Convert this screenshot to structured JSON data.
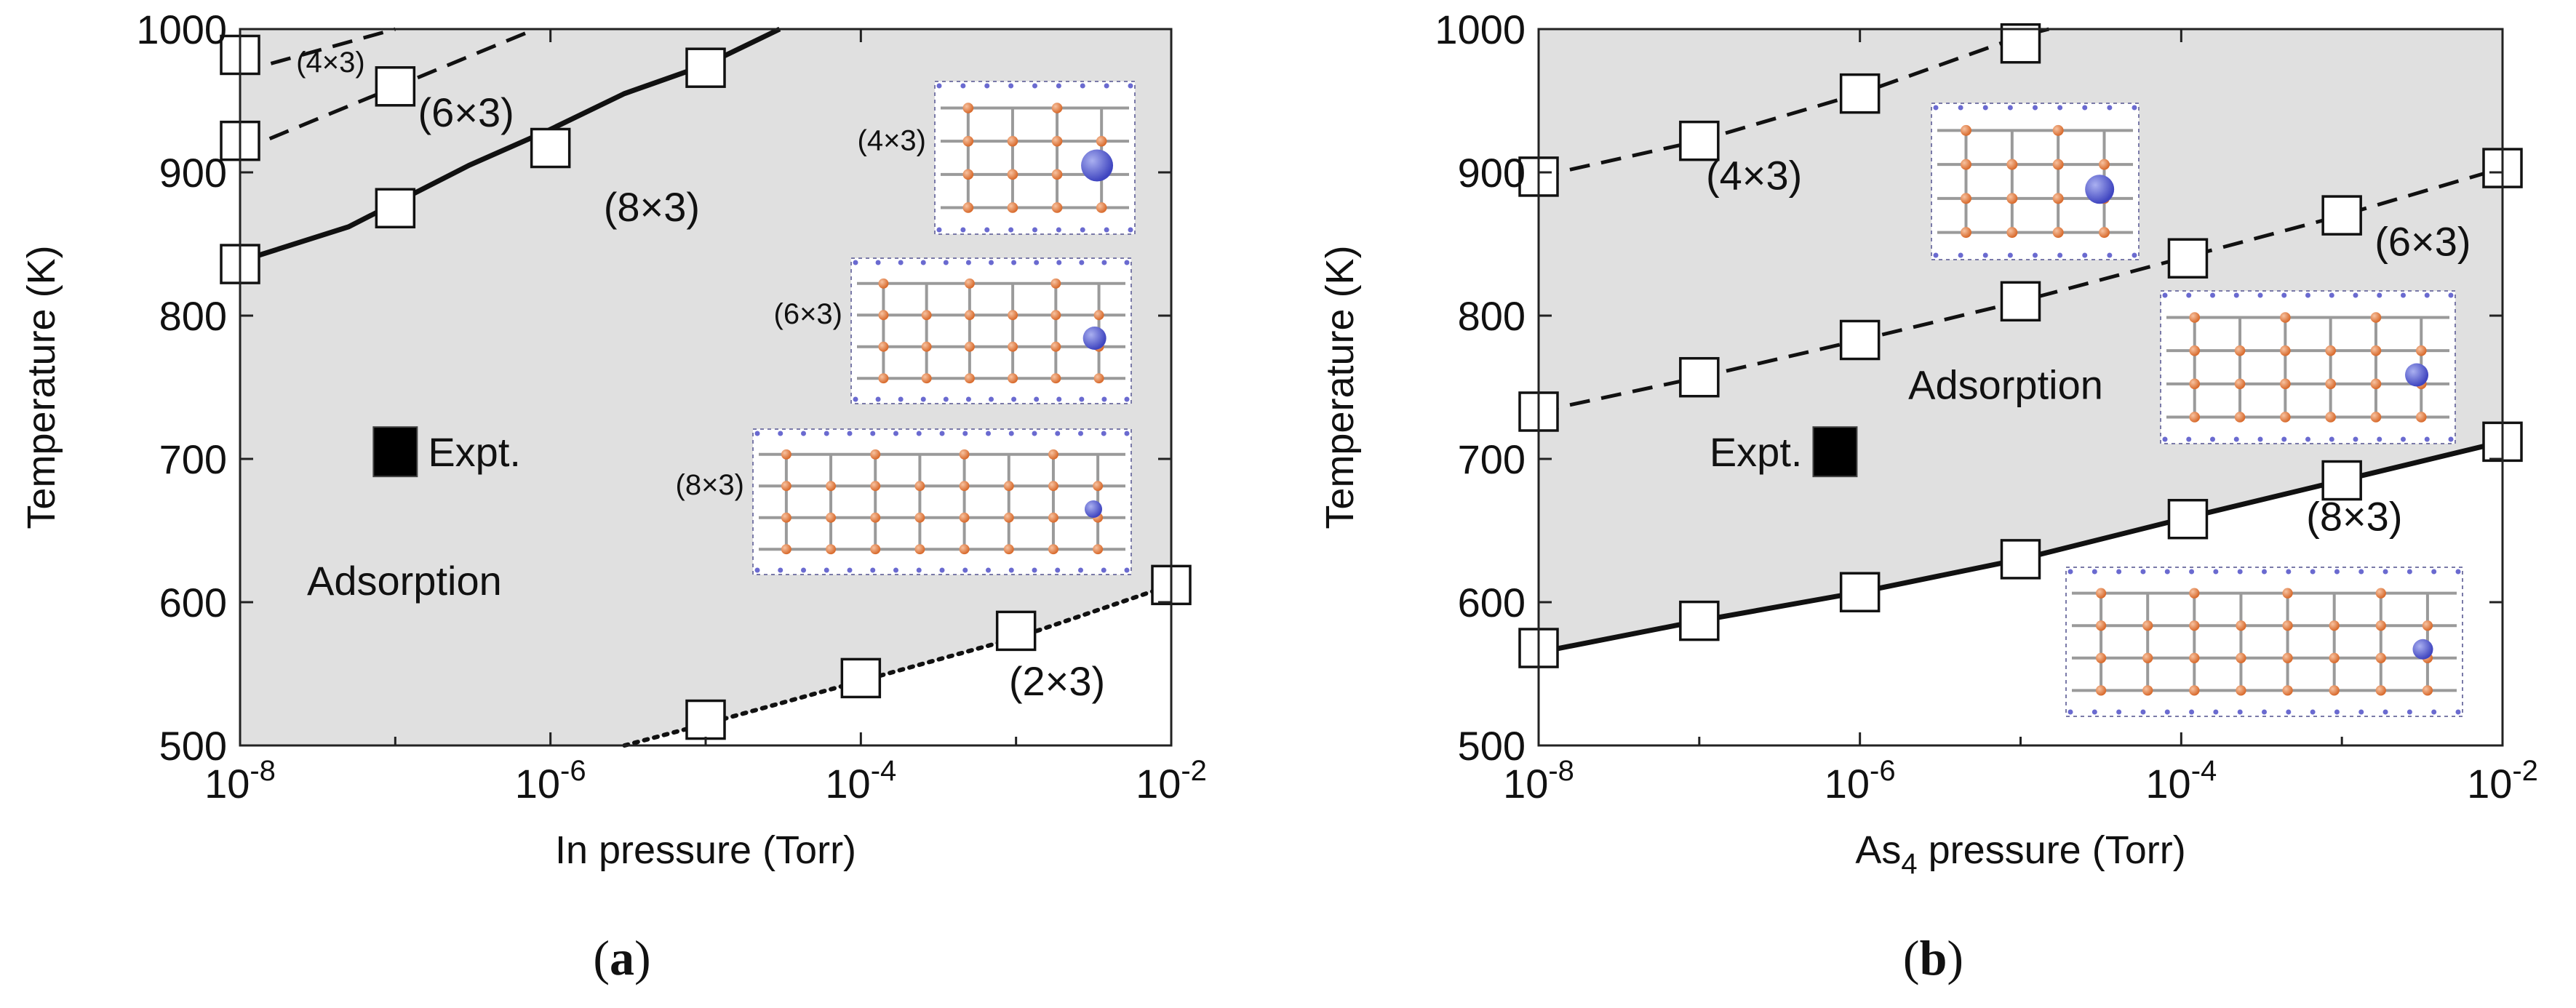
{
  "chart_data": [
    {
      "type": "scatter",
      "panel_label": "a",
      "xlabel": "In pressure (Torr)",
      "ylabel": "Temperature (K)",
      "xscale": "log",
      "xlim": [
        1e-08,
        0.01
      ],
      "ylim": [
        500,
        1000
      ],
      "x_ticks": [
        {
          "base": "10",
          "exp": "-8",
          "value": 1e-08
        },
        {
          "base": "10",
          "exp": "-6",
          "value": 1e-06
        },
        {
          "base": "10",
          "exp": "-4",
          "value": 0.0001
        },
        {
          "base": "10",
          "exp": "-2",
          "value": 0.01
        }
      ],
      "y_ticks": [
        "500",
        "600",
        "700",
        "800",
        "900",
        "1000"
      ],
      "y_tick_values": [
        500,
        600,
        700,
        800,
        900,
        1000
      ],
      "shaded_region": "Adsorption",
      "series": [
        {
          "name": "(4×3)",
          "style": "dashed",
          "line": [
            [
              1e-08,
              970
            ],
            [
              1e-07,
              1000
            ]
          ],
          "markers": [
            [
              1e-08,
              982
            ],
            [
              1e-07,
              960
            ]
          ]
        },
        {
          "name": "(6×3)",
          "style": "dashed",
          "line": [
            [
              1e-08,
              915
            ],
            [
              8e-07,
              1000
            ]
          ],
          "markers": [
            [
              1e-08,
              922
            ]
          ]
        },
        {
          "name": "(8×3)",
          "style": "solid",
          "line": [
            [
              1e-08,
              838
            ],
            [
              5e-08,
              862
            ],
            [
              3e-07,
              905
            ],
            [
              1e-06,
              930
            ],
            [
              3e-06,
              955
            ],
            [
              1e-05,
              975
            ],
            [
              3e-05,
              1000
            ]
          ],
          "markers": [
            [
              1e-08,
              836
            ],
            [
              1e-07,
              875
            ],
            [
              1e-06,
              917
            ],
            [
              1e-05,
              973
            ]
          ]
        },
        {
          "name": "(2×3)",
          "style": "dotted",
          "line": [
            [
              3e-06,
              500
            ],
            [
              1e-05,
              515
            ],
            [
              0.0001,
              545
            ],
            [
              0.001,
              575
            ],
            [
              0.01,
              612
            ]
          ],
          "markers": [
            [
              1e-05,
              518
            ],
            [
              0.0001,
              547
            ],
            [
              0.001,
              580
            ],
            [
              0.01,
              612
            ]
          ]
        }
      ],
      "expt": {
        "label": "Expt.",
        "x": 1e-07,
        "y": 705
      },
      "annotations": [
        {
          "text": "(4×3)",
          "x": 2.3e-08,
          "y": 970
        },
        {
          "text": "(6×3)",
          "x": 1.4e-07,
          "y": 932
        },
        {
          "text": "(8×3)",
          "x": 2.2e-06,
          "y": 866
        },
        {
          "text": "(2×3)",
          "x": 0.0009,
          "y": 535
        },
        {
          "text": "Adsorption",
          "x": 2.7e-08,
          "y": 605
        }
      ],
      "structure_labels": [
        "(4×3)",
        "(6×3)",
        "(8×3)"
      ]
    },
    {
      "type": "scatter",
      "panel_label": "b",
      "xlabel_prefix": "As",
      "xlabel_sub": "4",
      "xlabel_suffix": " pressure (Torr)",
      "ylabel": "Temperature (K)",
      "xscale": "log",
      "xlim": [
        1e-08,
        0.01
      ],
      "ylim": [
        500,
        1000
      ],
      "x_ticks": [
        {
          "base": "10",
          "exp": "-8",
          "value": 1e-08
        },
        {
          "base": "10",
          "exp": "-6",
          "value": 1e-06
        },
        {
          "base": "10",
          "exp": "-4",
          "value": 0.0001
        },
        {
          "base": "10",
          "exp": "-2",
          "value": 0.01
        }
      ],
      "y_ticks": [
        "500",
        "600",
        "700",
        "800",
        "900",
        "1000"
      ],
      "y_tick_values": [
        500,
        600,
        700,
        800,
        900,
        1000
      ],
      "shaded_region": "Adsorption",
      "series": [
        {
          "name": "(4×3)",
          "style": "dashed",
          "line": [
            [
              1e-08,
              897
            ],
            [
              1e-07,
              922
            ],
            [
              1e-06,
              955
            ],
            [
              1e-05,
              995
            ],
            [
              1.5e-05,
              1000
            ]
          ],
          "markers": [
            [
              1e-08,
              897
            ],
            [
              1e-07,
              922
            ],
            [
              1e-06,
              955
            ],
            [
              1e-05,
              990
            ]
          ]
        },
        {
          "name": "(6×3)",
          "style": "dashed",
          "line": [
            [
              1e-08,
              733
            ],
            [
              1e-07,
              757
            ],
            [
              1e-06,
              783
            ],
            [
              1e-05,
              810
            ],
            [
              0.0001,
              840
            ],
            [
              0.001,
              870
            ],
            [
              0.01,
              903
            ]
          ],
          "markers": [
            [
              1e-08,
              733
            ],
            [
              1e-07,
              757
            ],
            [
              1e-06,
              783
            ],
            [
              1e-05,
              810
            ],
            [
              0.00011,
              840
            ],
            [
              0.001,
              870
            ],
            [
              0.01,
              903
            ]
          ]
        },
        {
          "name": "(8×3)",
          "style": "solid",
          "line": [
            [
              1e-08,
              565
            ],
            [
              1e-07,
              587
            ],
            [
              1e-06,
              607
            ],
            [
              1e-05,
              630
            ],
            [
              0.0001,
              658
            ],
            [
              0.001,
              685
            ],
            [
              0.01,
              712
            ]
          ],
          "markers": [
            [
              1e-08,
              568
            ],
            [
              1e-07,
              587
            ],
            [
              1e-06,
              607
            ],
            [
              1e-05,
              630
            ],
            [
              0.00011,
              658
            ],
            [
              0.001,
              685
            ],
            [
              0.01,
              712
            ]
          ]
        }
      ],
      "expt": {
        "label": "Expt.",
        "x": 7e-07,
        "y": 705
      },
      "annotations": [
        {
          "text": "(4×3)",
          "x": 1.1e-07,
          "y": 888
        },
        {
          "text": "(6×3)",
          "x": 0.0016,
          "y": 842
        },
        {
          "text": "(8×3)",
          "x": 0.0006,
          "y": 650
        },
        {
          "text": "Adsorption",
          "x": 2e-06,
          "y": 742
        }
      ],
      "structure_labels": []
    }
  ]
}
